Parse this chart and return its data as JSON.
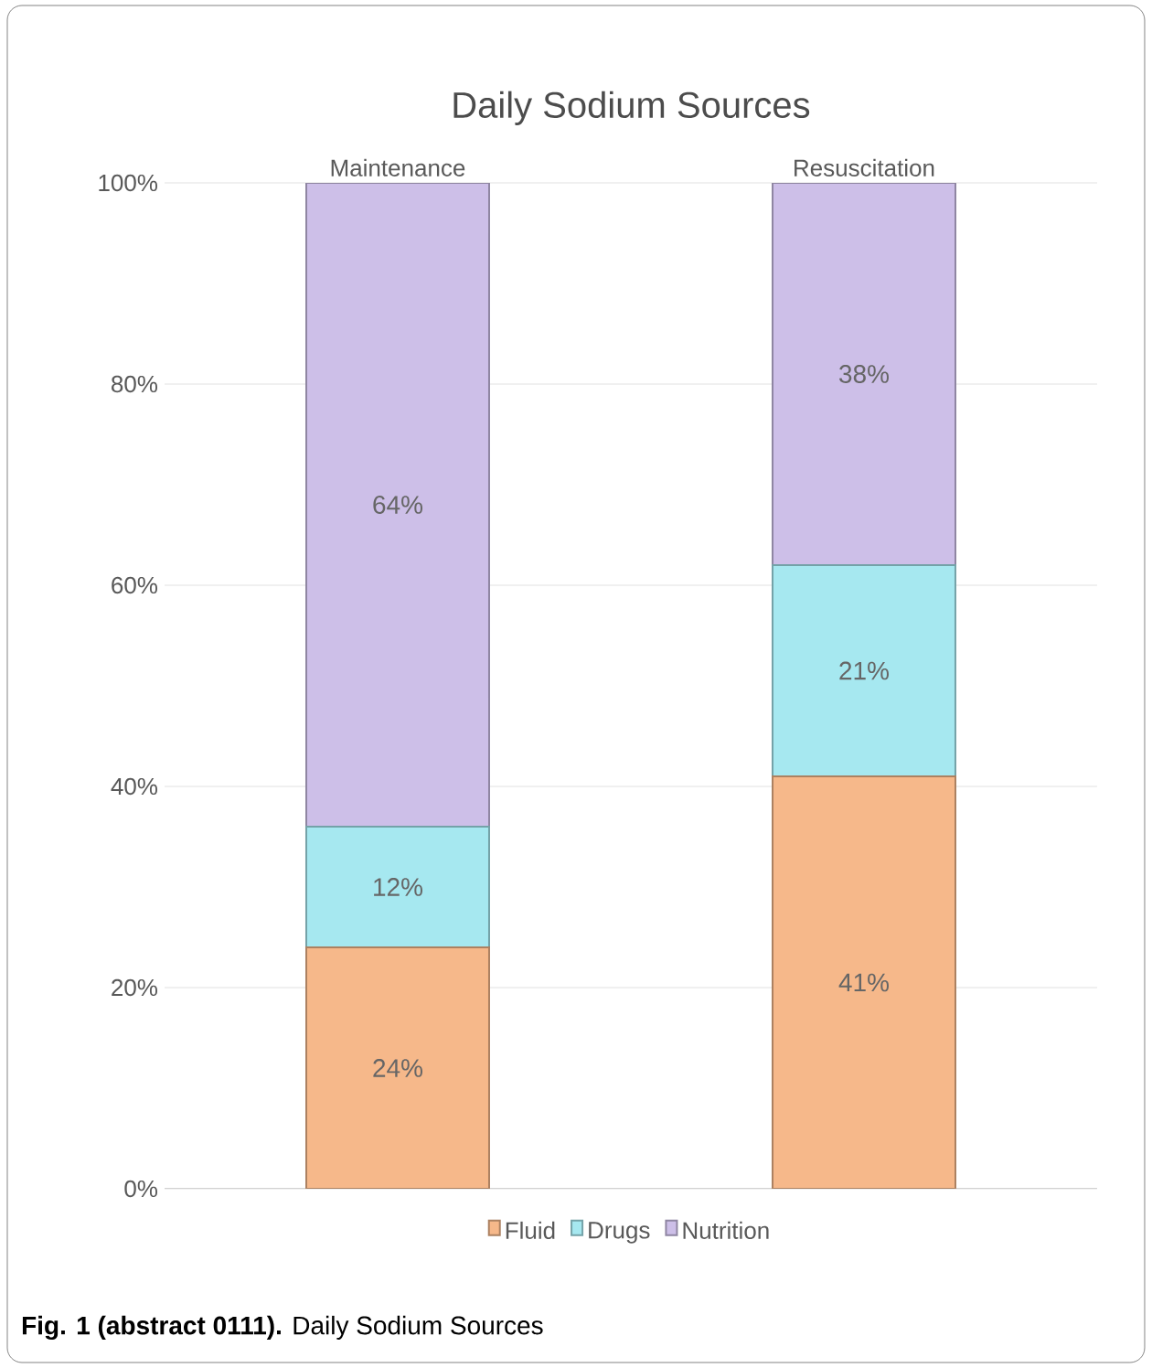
{
  "chart_data": {
    "type": "bar",
    "stacked": true,
    "title": "Daily Sodium Sources",
    "categories": [
      "Maintenance",
      "Resuscitation"
    ],
    "series": [
      {
        "name": "Fluid",
        "color": "#f6b88a",
        "values": [
          24,
          41
        ],
        "value_labels": [
          "24%",
          "41%"
        ]
      },
      {
        "name": "Drugs",
        "color": "#a6e8f0",
        "values": [
          12,
          21
        ],
        "value_labels": [
          "12%",
          "21%"
        ]
      },
      {
        "name": "Nutrition",
        "color": "#cdbfe8",
        "values": [
          64,
          38
        ],
        "value_labels": [
          "64%",
          "38%"
        ]
      }
    ],
    "ylim": [
      0,
      100
    ],
    "yticks": [
      {
        "value": 0,
        "label": "0%"
      },
      {
        "value": 20,
        "label": "20%"
      },
      {
        "value": 40,
        "label": "40%"
      },
      {
        "value": 60,
        "label": "60%"
      },
      {
        "value": 80,
        "label": "80%"
      },
      {
        "value": 100,
        "label": "100%"
      }
    ],
    "grid": "y",
    "legend": "bottom",
    "annotations": [
      "**Fig. 1 (abstract 0111).** Daily Sodium Sources"
    ]
  }
}
